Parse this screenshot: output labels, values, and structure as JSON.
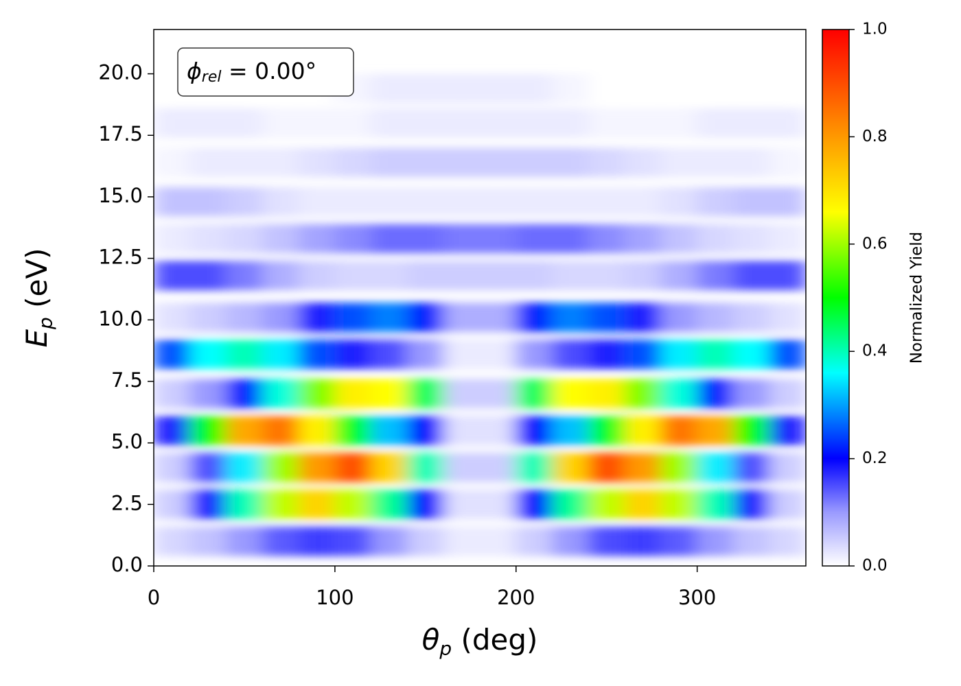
{
  "chart_data": {
    "type": "heatmap",
    "annotation": {
      "symbol": "ϕ",
      "subscript": "rel",
      "text": " = 0.00°"
    },
    "xlabel": {
      "symbol": "θ",
      "subscript": "p",
      "text": " (deg)"
    },
    "ylabel": {
      "symbol": "E",
      "subscript": "p",
      "text": " (eV)"
    },
    "colorbar_label": "Normalized Yield",
    "xlim": [
      0,
      360
    ],
    "ylim": [
      0,
      21.8
    ],
    "xticks": [
      0,
      100,
      200,
      300
    ],
    "yticks": [
      {
        "value": 0,
        "label": "0.0"
      },
      2.5,
      {
        "value": 5,
        "label": "5.0"
      },
      7.5,
      {
        "value": 10,
        "label": "10.0"
      },
      12.5,
      {
        "value": 15,
        "label": "15.0"
      },
      17.5,
      {
        "value": 20,
        "label": "20.0"
      }
    ],
    "zlim": [
      0,
      1
    ],
    "zticks": [
      {
        "value": 0,
        "label": "0.0"
      },
      0.2,
      0.4,
      0.6,
      0.8,
      {
        "value": 1,
        "label": "1.0"
      }
    ],
    "colorscale": [
      [
        0,
        "#ffffff"
      ],
      [
        0.1,
        "#9a9aff"
      ],
      [
        0.2,
        "#0000ff"
      ],
      [
        0.3,
        "#00a0ff"
      ],
      [
        0.36,
        "#00ffff"
      ],
      [
        0.5,
        "#00ff00"
      ],
      [
        0.66,
        "#ffff00"
      ],
      [
        0.8,
        "#ff9900"
      ],
      [
        1,
        "#ff0000"
      ]
    ],
    "x": [
      10,
      30,
      50,
      70,
      90,
      110,
      130,
      150,
      170,
      190,
      210,
      230,
      250,
      270,
      290,
      310,
      330,
      350
    ],
    "y": [
      1.0,
      2.5,
      4.0,
      5.5,
      7.0,
      8.6,
      10.1,
      11.8,
      13.3,
      14.8,
      16.4,
      18.0,
      19.4
    ],
    "z": [
      [
        0.04,
        0.06,
        0.1,
        0.14,
        0.16,
        0.15,
        0.1,
        0.05,
        0.02,
        0.02,
        0.05,
        0.1,
        0.15,
        0.16,
        0.14,
        0.1,
        0.06,
        0.04
      ],
      [
        0.05,
        0.18,
        0.4,
        0.62,
        0.72,
        0.62,
        0.42,
        0.2,
        0.03,
        0.03,
        0.2,
        0.42,
        0.62,
        0.72,
        0.62,
        0.4,
        0.18,
        0.05
      ],
      [
        0.05,
        0.15,
        0.35,
        0.6,
        0.8,
        0.9,
        0.72,
        0.4,
        0.05,
        0.05,
        0.4,
        0.72,
        0.9,
        0.8,
        0.6,
        0.35,
        0.15,
        0.05
      ],
      [
        0.18,
        0.5,
        0.78,
        0.85,
        0.68,
        0.48,
        0.32,
        0.2,
        0.03,
        0.03,
        0.2,
        0.32,
        0.48,
        0.68,
        0.85,
        0.78,
        0.5,
        0.18
      ],
      [
        0.05,
        0.1,
        0.22,
        0.38,
        0.58,
        0.68,
        0.66,
        0.45,
        0.05,
        0.05,
        0.45,
        0.66,
        0.68,
        0.58,
        0.38,
        0.22,
        0.1,
        0.05
      ],
      [
        0.25,
        0.36,
        0.4,
        0.35,
        0.25,
        0.18,
        0.15,
        0.1,
        0.02,
        0.02,
        0.1,
        0.15,
        0.18,
        0.25,
        0.35,
        0.4,
        0.36,
        0.25
      ],
      [
        0.03,
        0.05,
        0.07,
        0.1,
        0.18,
        0.25,
        0.28,
        0.22,
        0.08,
        0.08,
        0.22,
        0.28,
        0.25,
        0.18,
        0.1,
        0.07,
        0.05,
        0.03
      ],
      [
        0.15,
        0.15,
        0.12,
        0.08,
        0.05,
        0.04,
        0.04,
        0.05,
        0.05,
        0.05,
        0.05,
        0.04,
        0.04,
        0.05,
        0.08,
        0.12,
        0.15,
        0.15
      ],
      [
        0.02,
        0.03,
        0.04,
        0.06,
        0.09,
        0.11,
        0.13,
        0.13,
        0.12,
        0.12,
        0.13,
        0.13,
        0.11,
        0.09,
        0.06,
        0.04,
        0.03,
        0.02
      ],
      [
        0.06,
        0.06,
        0.05,
        0.03,
        0.02,
        0.02,
        0.02,
        0.02,
        0.02,
        0.02,
        0.02,
        0.02,
        0.02,
        0.02,
        0.03,
        0.05,
        0.06,
        0.06
      ],
      [
        0.01,
        0.02,
        0.02,
        0.02,
        0.03,
        0.04,
        0.05,
        0.05,
        0.05,
        0.05,
        0.05,
        0.05,
        0.04,
        0.03,
        0.02,
        0.02,
        0.02,
        0.01
      ],
      [
        0.02,
        0.02,
        0.02,
        0.01,
        0.01,
        0.01,
        0.02,
        0.02,
        0.02,
        0.02,
        0.02,
        0.02,
        0.01,
        0.01,
        0.01,
        0.02,
        0.02,
        0.02
      ],
      [
        0.0,
        0.0,
        0.0,
        0.0,
        0.0,
        0.01,
        0.02,
        0.02,
        0.02,
        0.02,
        0.02,
        0.01,
        0.0,
        0.0,
        0.0,
        0.0,
        0.0,
        0.0
      ]
    ]
  }
}
